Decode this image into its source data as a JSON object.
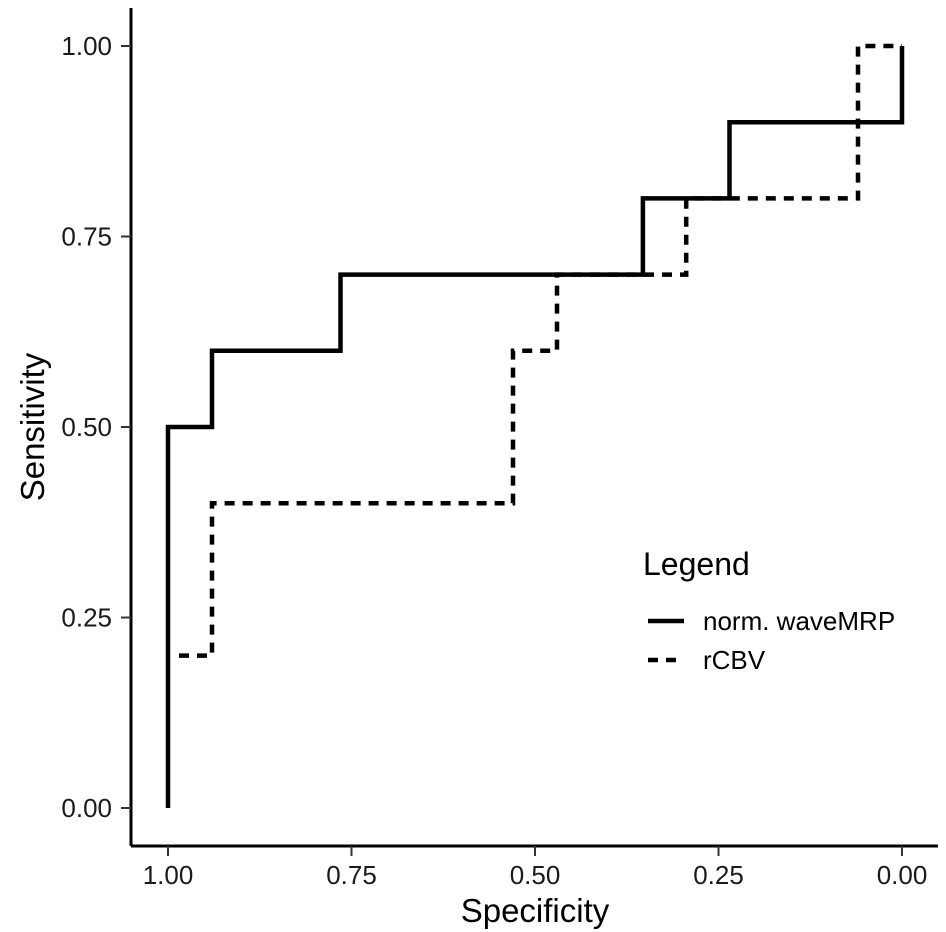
{
  "chart_data": {
    "type": "line",
    "xlabel": "Specificity",
    "ylabel": "Sensitivity",
    "xlim": [
      1.0,
      0.0
    ],
    "ylim": [
      0.0,
      1.0
    ],
    "x_reversed": true,
    "x_ticks": [
      "1.00",
      "0.75",
      "0.50",
      "0.25",
      "0.00"
    ],
    "y_ticks": [
      "0.00",
      "0.25",
      "0.50",
      "0.75",
      "1.00"
    ],
    "grid": false,
    "legend": {
      "title": "Legend",
      "placement": "right",
      "entries": [
        "norm. waveMRP",
        "rCBV"
      ]
    },
    "series": [
      {
        "name": "norm. waveMRP",
        "line_style": "solid",
        "color": "#000000",
        "step": true,
        "points": [
          {
            "x": 1.0,
            "y": 0.0
          },
          {
            "x": 1.0,
            "y": 0.5
          },
          {
            "x": 0.94,
            "y": 0.5
          },
          {
            "x": 0.94,
            "y": 0.6
          },
          {
            "x": 0.765,
            "y": 0.6
          },
          {
            "x": 0.765,
            "y": 0.7
          },
          {
            "x": 0.353,
            "y": 0.7
          },
          {
            "x": 0.353,
            "y": 0.8
          },
          {
            "x": 0.235,
            "y": 0.8
          },
          {
            "x": 0.235,
            "y": 0.9
          },
          {
            "x": 0.0,
            "y": 0.9
          },
          {
            "x": 0.0,
            "y": 1.0
          }
        ]
      },
      {
        "name": "rCBV",
        "line_style": "dashed",
        "color": "#000000",
        "step": true,
        "points": [
          {
            "x": 0.985,
            "y": 0.2
          },
          {
            "x": 0.94,
            "y": 0.2
          },
          {
            "x": 0.94,
            "y": 0.4
          },
          {
            "x": 0.53,
            "y": 0.4
          },
          {
            "x": 0.53,
            "y": 0.6
          },
          {
            "x": 0.47,
            "y": 0.6
          },
          {
            "x": 0.47,
            "y": 0.7
          },
          {
            "x": 0.294,
            "y": 0.7
          },
          {
            "x": 0.294,
            "y": 0.8
          },
          {
            "x": 0.06,
            "y": 0.8
          },
          {
            "x": 0.06,
            "y": 1.0
          },
          {
            "x": 0.0,
            "y": 1.0
          }
        ]
      }
    ]
  }
}
